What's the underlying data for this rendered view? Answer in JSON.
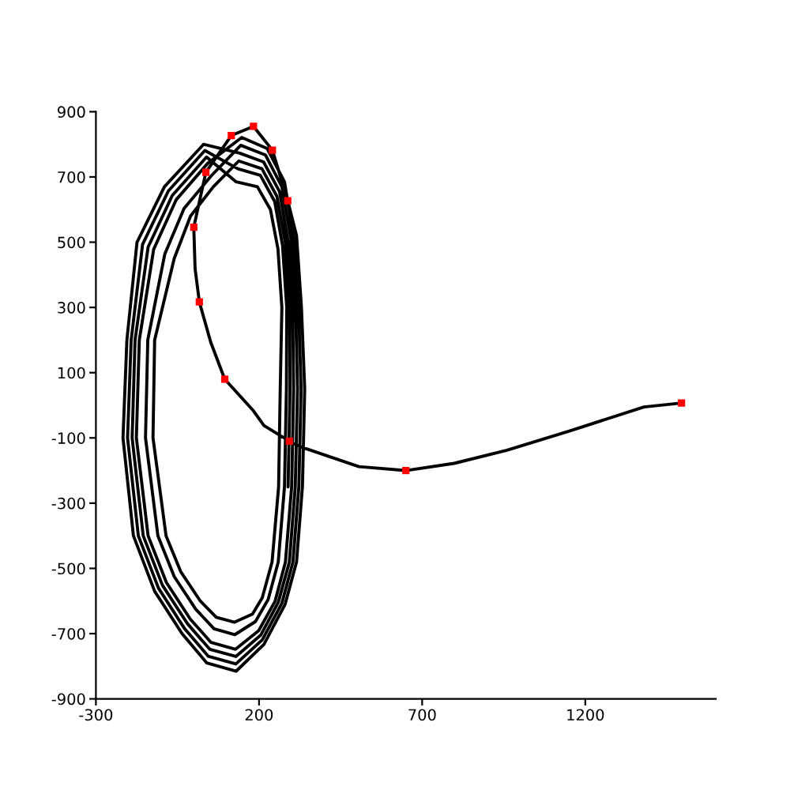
{
  "chart_data": {
    "type": "line",
    "marker": "none",
    "line_style": "solid",
    "grid": false,
    "xlim": [
      -300,
      1600
    ],
    "xticks": [
      -300,
      200,
      700,
      1200
    ],
    "ylim": [
      -900,
      900
    ],
    "yticks": [
      -900,
      -700,
      -500,
      -300,
      -100,
      100,
      300,
      500,
      700,
      900
    ],
    "series": [
      {
        "color": "#000000",
        "x": [
          1495,
          1380,
          1155,
          960,
          798,
          650,
          506,
          344,
          293,
          215,
          183,
          95,
          52,
          17,
          4,
          0,
          37,
          115,
          183,
          241,
          288,
          315,
          330,
          340,
          333,
          315,
          280,
          215,
          130,
          40,
          -36,
          -120,
          -185,
          -217,
          -205,
          -174,
          -90,
          30,
          141,
          214,
          263,
          289,
          303,
          306,
          300,
          281,
          249,
          199,
          128,
          53,
          -11,
          -84,
          -140,
          -176,
          -167,
          -123,
          -54,
          43,
          147,
          225,
          278,
          306,
          321,
          329,
          322,
          304,
          270,
          210,
          129,
          44,
          -28,
          -108,
          -170,
          -203,
          -192,
          -157,
          -78,
          34,
          135,
          204,
          248,
          272,
          285,
          284,
          278,
          259,
          228,
          189,
          126,
          62,
          6,
          -60,
          -110,
          -148,
          -141,
          -89,
          -30,
          53,
          144,
          220,
          270,
          298,
          312,
          318,
          311,
          293,
          259,
          205,
          129,
          49,
          -19,
          -96,
          -155,
          -189,
          -180,
          -140,
          -66,
          39,
          130,
          195,
          235,
          258,
          270,
          265,
          260,
          240,
          210,
          180,
          125,
          69,
          20,
          -40,
          -85,
          -125,
          -120,
          -60,
          -10,
          60,
          138,
          209,
          255,
          281,
          294,
          295,
          289
        ],
        "values": [
          7,
          -5,
          -78,
          -138,
          -178,
          -200,
          -188,
          -133,
          -110,
          -62,
          -17,
          80,
          193,
          317,
          419,
          546,
          714,
          827,
          855,
          782,
          627,
          520,
          300,
          50,
          -250,
          -480,
          -610,
          -733,
          -815,
          -790,
          -700,
          -570,
          -400,
          -100,
          200,
          500,
          670,
          800,
          773,
          746,
          655,
          502,
          300,
          50,
          -250,
          -480,
          -601,
          -691,
          -748,
          -727,
          -655,
          -543,
          -400,
          -100,
          200,
          478,
          630,
          742,
          821,
          787,
          685,
          514,
          300,
          50,
          -250,
          -480,
          -607,
          -719,
          -793,
          -769,
          -685,
          -561,
          -400,
          -100,
          200,
          493,
          657,
          781,
          725,
          705,
          625,
          490,
          300,
          50,
          -250,
          -480,
          -595,
          -663,
          -703,
          -685,
          -625,
          -525,
          -400,
          -100,
          200,
          463,
          603,
          703,
          797,
          767,
          670,
          508,
          300,
          50,
          -250,
          -480,
          -604,
          -705,
          -770,
          -748,
          -670,
          -552,
          -400,
          -100,
          200,
          485,
          643,
          761,
          685,
          670,
          600,
          480,
          300,
          50,
          -250,
          -480,
          -590,
          -640,
          -665,
          -650,
          -600,
          -510,
          -400,
          -100,
          200,
          450,
          580,
          670,
          749,
          725,
          640,
          496,
          300,
          50,
          -250
        ]
      },
      {
        "type": "scatter",
        "color": "#ff0000",
        "marker": "square",
        "x": [
          1495,
          650,
          293,
          95,
          17,
          0,
          37,
          115,
          183,
          241,
          288
        ],
        "values": [
          7,
          -200,
          -110,
          80,
          317,
          546,
          714,
          827,
          855,
          782,
          627
        ]
      }
    ]
  }
}
